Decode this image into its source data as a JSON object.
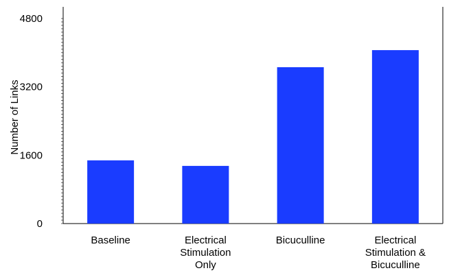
{
  "chart_data": {
    "type": "bar",
    "title": "",
    "xlabel": "",
    "ylabel": "Number of Links",
    "categories": [
      [
        "Baseline"
      ],
      [
        "Electrical",
        "Stimulation",
        "Only"
      ],
      [
        "Bicuculline"
      ],
      [
        "Electrical",
        "Stimulation &",
        "Bicuculline"
      ]
    ],
    "values": [
      1480,
      1350,
      3660,
      4060
    ],
    "ylim": [
      0,
      4800
    ],
    "yticks": [
      0,
      1600,
      3200,
      4800
    ],
    "grid": false,
    "legend": "none",
    "bar_color": "#1a3cff"
  }
}
